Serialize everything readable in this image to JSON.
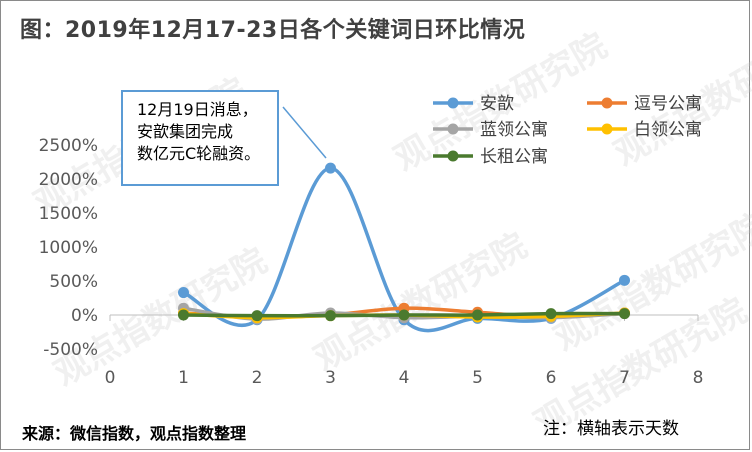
{
  "title": "图：2019年12月17-23日各个关键词日环比情况",
  "annotation_lines": [
    "12月19日消息，",
    "安歆集团完成",
    "数亿元C轮融资。"
  ],
  "source": "来源：微信指数，观点指数整理",
  "note": "注：横轴表示天数",
  "watermark": "观点指数研究院",
  "chart_data": {
    "type": "line",
    "x": [
      1,
      2,
      3,
      4,
      5,
      6,
      7
    ],
    "xlim": [
      0,
      8
    ],
    "xticks": [
      "0",
      "1",
      "2",
      "3",
      "4",
      "5",
      "6",
      "7",
      "8"
    ],
    "ylim": [
      -500,
      2500
    ],
    "yticks": [
      "-500%",
      "0%",
      "500%",
      "1000%",
      "1500%",
      "2000%",
      "2500%"
    ],
    "grid": false,
    "legend_position": "top-right",
    "series": [
      {
        "name": "安歆",
        "color": "#5b9bd5",
        "values": [
          330,
          -70,
          2160,
          -70,
          -50,
          -50,
          510
        ]
      },
      {
        "name": "逗号公寓",
        "color": "#ed7d31",
        "values": [
          30,
          -30,
          0,
          100,
          40,
          -30,
          30
        ]
      },
      {
        "name": "蓝领公寓",
        "color": "#a5a5a5",
        "values": [
          100,
          -60,
          30,
          -40,
          -20,
          -40,
          20
        ]
      },
      {
        "name": "白领公寓",
        "color": "#ffc000",
        "values": [
          20,
          -40,
          -10,
          0,
          -30,
          -20,
          30
        ]
      },
      {
        "name": "长租公寓",
        "color": "#4a7a2e",
        "values": [
          0,
          -10,
          -10,
          0,
          0,
          20,
          20
        ]
      }
    ]
  }
}
